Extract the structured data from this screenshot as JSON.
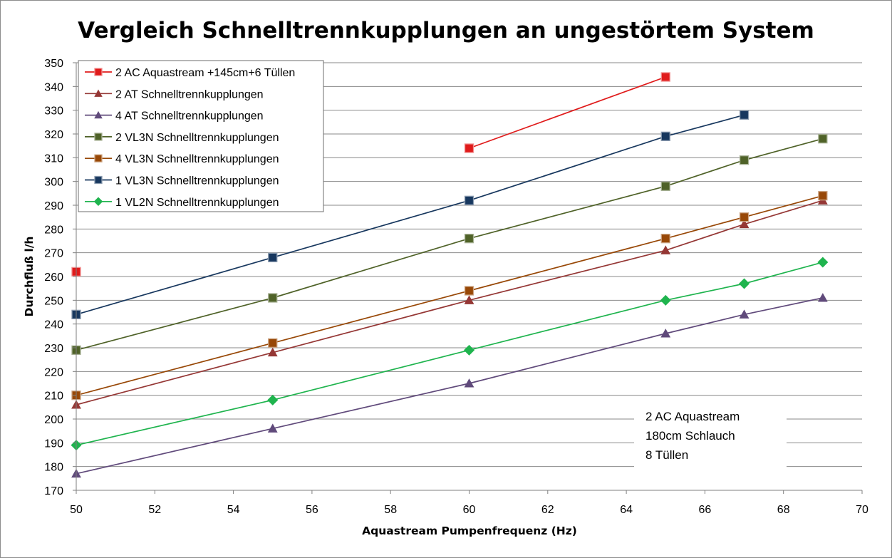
{
  "chart_data": {
    "type": "line",
    "title": "Vergleich Schnelltrennkupplungen an ungestörtem System",
    "xlabel": "Aquastream Pumpenfrequenz (Hz)",
    "ylabel": "Durchfluß l/h",
    "xlim": [
      50,
      70
    ],
    "ylim": [
      170,
      350
    ],
    "xticks": [
      50,
      52,
      54,
      56,
      58,
      60,
      62,
      64,
      66,
      68,
      70
    ],
    "yticks": [
      170,
      180,
      190,
      200,
      210,
      220,
      230,
      240,
      250,
      260,
      270,
      280,
      290,
      300,
      310,
      320,
      330,
      340,
      350
    ],
    "grid": "horizontal",
    "legend_position": "top-left",
    "series": [
      {
        "name": "2 AC Aquastream +145cm+6 Tüllen",
        "color": "#e01b1b",
        "marker": "square",
        "points": [
          [
            50,
            262
          ],
          [
            60,
            314
          ],
          [
            65,
            344
          ]
        ],
        "segments": [
          [
            1,
            2
          ]
        ]
      },
      {
        "name": "2 AT Schnelltrennkupplungen",
        "color": "#953735",
        "marker": "triangle",
        "points": [
          [
            50,
            206
          ],
          [
            55,
            228
          ],
          [
            60,
            250
          ],
          [
            65,
            271
          ],
          [
            67,
            282
          ],
          [
            69,
            292
          ]
        ],
        "segments": [
          [
            0,
            5
          ]
        ]
      },
      {
        "name": "4 AT Schnelltrennkupplungen",
        "color": "#604a7b",
        "marker": "triangle",
        "points": [
          [
            50,
            177
          ],
          [
            55,
            196
          ],
          [
            60,
            215
          ],
          [
            65,
            236
          ],
          [
            67,
            244
          ],
          [
            69,
            251
          ]
        ],
        "segments": [
          [
            0,
            5
          ]
        ]
      },
      {
        "name": "2 VL3N Schnelltrennkupplungen",
        "color": "#4f6228",
        "marker": "square",
        "points": [
          [
            50,
            229
          ],
          [
            55,
            251
          ],
          [
            60,
            276
          ],
          [
            65,
            298
          ],
          [
            67,
            309
          ],
          [
            69,
            318
          ]
        ],
        "segments": [
          [
            0,
            5
          ]
        ]
      },
      {
        "name": "4 VL3N Schnelltrennkupplungen",
        "color": "#984807",
        "marker": "square",
        "points": [
          [
            50,
            210
          ],
          [
            55,
            232
          ],
          [
            60,
            254
          ],
          [
            65,
            276
          ],
          [
            67,
            285
          ],
          [
            69,
            294
          ]
        ],
        "segments": [
          [
            0,
            5
          ]
        ]
      },
      {
        "name": "1 VL3N  Schnelltrennkupplungen",
        "color": "#17375e",
        "marker": "square",
        "points": [
          [
            50,
            244
          ],
          [
            55,
            268
          ],
          [
            60,
            292
          ],
          [
            65,
            319
          ],
          [
            67,
            328
          ]
        ],
        "segments": [
          [
            0,
            4
          ]
        ]
      },
      {
        "name": "1 VL2N Schnelltrennkupplungen",
        "color": "#1fb44e",
        "marker": "diamond",
        "points": [
          [
            50,
            189
          ],
          [
            55,
            208
          ],
          [
            60,
            229
          ],
          [
            65,
            250
          ],
          [
            67,
            257
          ],
          [
            69,
            266
          ]
        ],
        "segments": [
          [
            0,
            5
          ]
        ]
      }
    ],
    "annotation": [
      "2 AC Aquastream",
      "180cm Schlauch",
      "8 Tüllen"
    ]
  }
}
